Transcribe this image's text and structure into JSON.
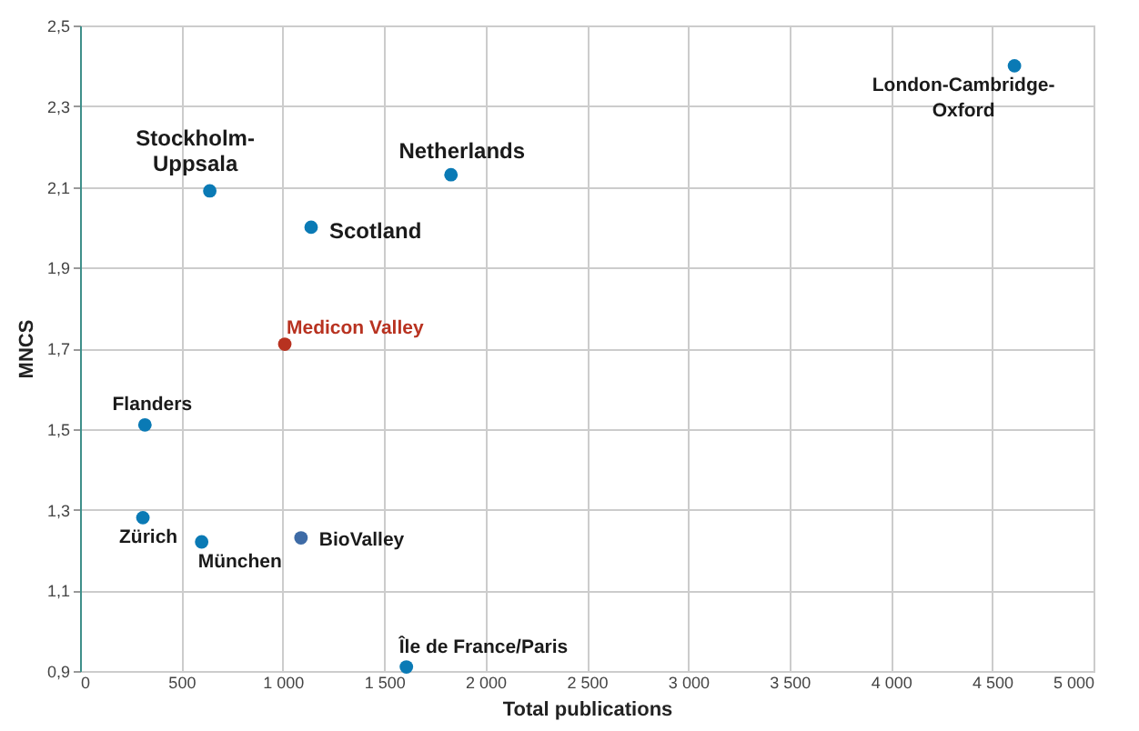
{
  "chart_data": {
    "type": "scatter",
    "xlabel": "Total publications",
    "ylabel": "MNCS",
    "x": [
      640,
      1830,
      1140,
      1010,
      320,
      310,
      600,
      1090,
      1610,
      4610
    ],
    "values": [
      2.09,
      2.13,
      2.0,
      1.71,
      1.51,
      1.28,
      1.22,
      1.23,
      0.91,
      2.4
    ],
    "colors": [
      "#0a7ab5",
      "#0a7ab5",
      "#0a7ab5",
      "#b83220",
      "#0a7ab5",
      "#0a7ab5",
      "#0a7ab5",
      "#3e6ba6",
      "#0a7ab5",
      "#0a7ab5"
    ],
    "annotations": [
      {
        "text": "Stockholm-Uppsala",
        "x": 640,
        "y": 2.09
      },
      {
        "text": "Netherlands",
        "x": 1830,
        "y": 2.13
      },
      {
        "text": "Scotland",
        "x": 1140,
        "y": 2.0
      },
      {
        "text": "Medicon Valley",
        "x": 1010,
        "y": 1.71
      },
      {
        "text": "Flanders",
        "x": 320,
        "y": 1.51
      },
      {
        "text": "Zürich",
        "x": 310,
        "y": 1.28
      },
      {
        "text": "München",
        "x": 600,
        "y": 1.22
      },
      {
        "text": "BioValley",
        "x": 1090,
        "y": 1.23
      },
      {
        "text": "Île de France/Paris",
        "x": 1610,
        "y": 0.91
      },
      {
        "text": "London-Cambridge-Oxford",
        "x": 4610,
        "y": 2.4
      }
    ],
    "xlim": [
      0,
      5000
    ],
    "xticks": [
      {
        "value": 0,
        "label": "0"
      },
      {
        "value": 500,
        "label": "500"
      },
      {
        "value": 1000,
        "label": "1 000"
      },
      {
        "value": 1500,
        "label": "1 500"
      },
      {
        "value": 2000,
        "label": "2 000"
      },
      {
        "value": 2500,
        "label": "2 500"
      },
      {
        "value": 3000,
        "label": "3 000"
      },
      {
        "value": 3500,
        "label": "3 500"
      },
      {
        "value": 4000,
        "label": "4 000"
      },
      {
        "value": 4500,
        "label": "4 500"
      },
      {
        "value": 5000,
        "label": "5 000"
      }
    ],
    "ylim": [
      0.9,
      2.5
    ],
    "yticks": [
      {
        "value": 0.9,
        "label": "0,9"
      },
      {
        "value": 1.1,
        "label": "1,1"
      },
      {
        "value": 1.3,
        "label": "1,3"
      },
      {
        "value": 1.5,
        "label": "1,5"
      },
      {
        "value": 1.7,
        "label": "1,7"
      },
      {
        "value": 1.9,
        "label": "1,9"
      },
      {
        "value": 2.1,
        "label": "2,1"
      },
      {
        "value": 2.3,
        "label": "2,3"
      },
      {
        "value": 2.5,
        "label": "2,5"
      }
    ],
    "grid": true
  }
}
